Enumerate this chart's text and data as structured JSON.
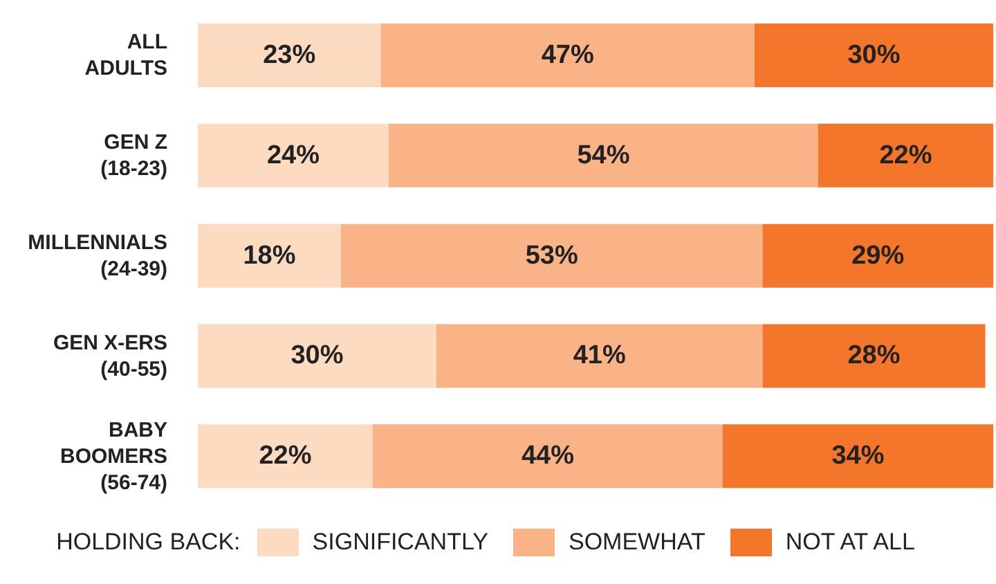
{
  "chart_data": {
    "type": "bar",
    "orientation": "horizontal",
    "stacked": true,
    "legend": "bottom",
    "legend_title": "HOLDING BACK:",
    "categories": [
      "ALL\nADULTS",
      "GEN Z\n(18-23)",
      "MILLENNIALS\n(24-39)",
      "GEN X-ERS\n(40-55)",
      "BABY\nBOOMERS\n(56-74)"
    ],
    "series": [
      {
        "name": "SIGNIFICANTLY",
        "color": "#fddbc0",
        "values": [
          23,
          24,
          18,
          30,
          22
        ],
        "value_labels": [
          "23%",
          "24%",
          "18%",
          "30%",
          "22%"
        ]
      },
      {
        "name": "SOMEWHAT",
        "color": "#f9b386",
        "values": [
          47,
          54,
          53,
          41,
          44
        ],
        "value_labels": [
          "47%",
          "54%",
          "53%",
          "41%",
          "44%"
        ]
      },
      {
        "name": "NOT AT ALL",
        "color": "#f4762b",
        "values": [
          30,
          22,
          29,
          28,
          34
        ],
        "value_labels": [
          "30%",
          "22%",
          "29%",
          "28%",
          "34%"
        ]
      }
    ]
  }
}
